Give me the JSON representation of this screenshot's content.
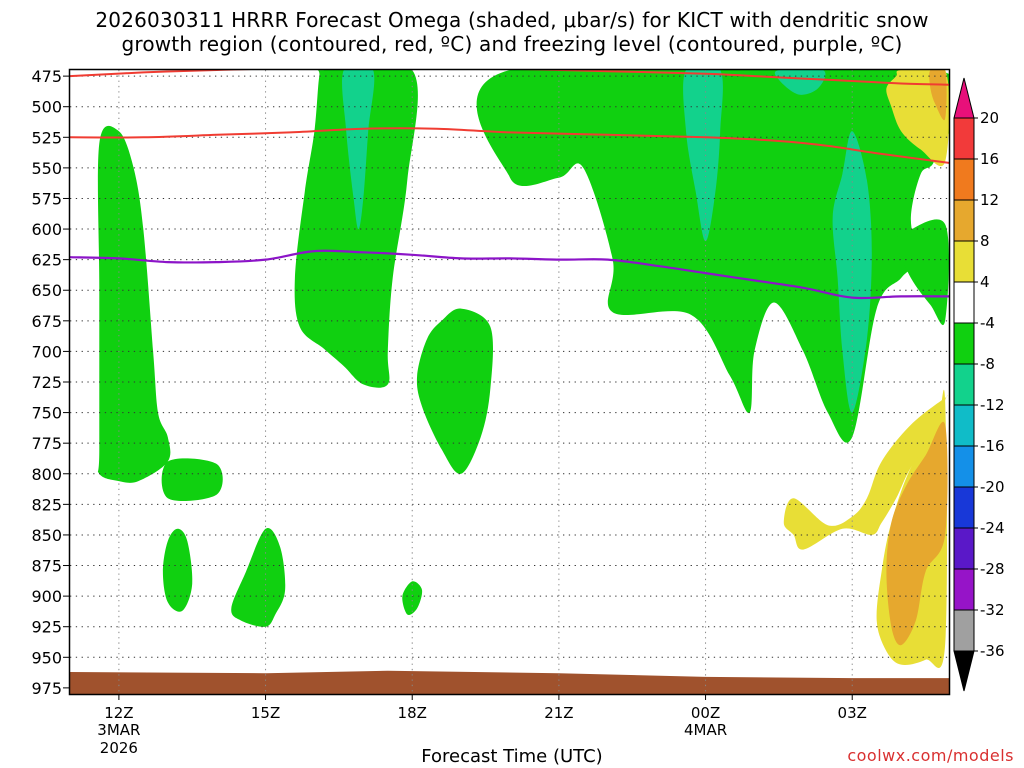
{
  "chart_data": {
    "type": "contour-time-height",
    "title_line1": "2026030311 HRRR Forecast Omega (shaded, μbar/s) for KICT with dendritic snow",
    "title_line2": "growth region (contoured, red, ºC) and freezing level (contoured, purple, ºC)",
    "xlabel": "Forecast Time (UTC)",
    "credit": "coolwx.com/models",
    "y_ticks": [
      475,
      500,
      525,
      550,
      575,
      600,
      625,
      650,
      675,
      700,
      725,
      750,
      775,
      800,
      825,
      850,
      875,
      900,
      925,
      950,
      975
    ],
    "x_ticks": [
      {
        "label": "12Z",
        "sub1": "3MAR",
        "sub2": "2026",
        "hour": 12
      },
      {
        "label": "15Z",
        "sub1": "",
        "sub2": "",
        "hour": 15
      },
      {
        "label": "18Z",
        "sub1": "",
        "sub2": "",
        "hour": 18
      },
      {
        "label": "21Z",
        "sub1": "",
        "sub2": "",
        "hour": 21
      },
      {
        "label": "00Z",
        "sub1": "4MAR",
        "sub2": "",
        "hour": 24
      },
      {
        "label": "03Z",
        "sub1": "",
        "sub2": "",
        "hour": 27
      }
    ],
    "x_range_hours": [
      11,
      29
    ],
    "y_range_mb": [
      470,
      980
    ],
    "colorbar": {
      "labels": [
        "20",
        "16",
        "12",
        "8",
        "4",
        "-4",
        "-8",
        "-12",
        "-16",
        "-20",
        "-24",
        "-28",
        "-32",
        "-36"
      ],
      "colors": [
        "#e8107a",
        "#f23a3a",
        "#f07a1e",
        "#e6a82e",
        "#e8de36",
        "#ffffff",
        "#10d010",
        "#12d28c",
        "#10bcc8",
        "#1490e8",
        "#1838d8",
        "#5a18c8",
        "#9614c8",
        "#a0a0a0",
        "#000000"
      ]
    },
    "dgz_top": [
      [
        11,
        475
      ],
      [
        12.5,
        472
      ],
      [
        14,
        470
      ],
      [
        16,
        468
      ],
      [
        18,
        468
      ],
      [
        20,
        469
      ],
      [
        22,
        471
      ],
      [
        24,
        473
      ],
      [
        25,
        475
      ],
      [
        26,
        477
      ],
      [
        27,
        479
      ],
      [
        28,
        481
      ],
      [
        29,
        482
      ]
    ],
    "dgz_bottom": [
      [
        11,
        525
      ],
      [
        12.5,
        525
      ],
      [
        14,
        523
      ],
      [
        15.5,
        521
      ],
      [
        17,
        518
      ],
      [
        18.5,
        518
      ],
      [
        20,
        521
      ],
      [
        22,
        523
      ],
      [
        24,
        525
      ],
      [
        25.5,
        528
      ],
      [
        26.5,
        532
      ],
      [
        27.5,
        538
      ],
      [
        29,
        546
      ]
    ],
    "freezing_level": [
      [
        11,
        623
      ],
      [
        12,
        624
      ],
      [
        13,
        627
      ],
      [
        14,
        627
      ],
      [
        15,
        625
      ],
      [
        16,
        618
      ],
      [
        17,
        619
      ],
      [
        18,
        621
      ],
      [
        19,
        624
      ],
      [
        20,
        624
      ],
      [
        21,
        625
      ],
      [
        22,
        625
      ],
      [
        23,
        630
      ],
      [
        24,
        636
      ],
      [
        25,
        642
      ],
      [
        26,
        648
      ],
      [
        27,
        656
      ],
      [
        28,
        655
      ],
      [
        29,
        655
      ]
    ],
    "omega_regions": [
      {
        "level": -4,
        "color": "#10d010",
        "points": [
          [
            11.6,
            530
          ],
          [
            12.0,
            520
          ],
          [
            12.3,
            550
          ],
          [
            12.5,
            600
          ],
          [
            12.7,
            700
          ],
          [
            12.8,
            750
          ],
          [
            13.0,
            770
          ],
          [
            13.0,
            790
          ],
          [
            12.4,
            806
          ],
          [
            12.0,
            806
          ],
          [
            11.6,
            800
          ],
          [
            11.6,
            780
          ],
          [
            11.6,
            650
          ]
        ]
      },
      {
        "level": -4,
        "color": "#10d010",
        "points": [
          [
            13.0,
            790
          ],
          [
            14.0,
            792
          ],
          [
            14.0,
            817
          ],
          [
            13.0,
            820
          ]
        ]
      },
      {
        "level": -4,
        "color": "#10d010",
        "points": [
          [
            13.2,
            845
          ],
          [
            13.4,
            855
          ],
          [
            13.5,
            890
          ],
          [
            13.3,
            912
          ],
          [
            13.0,
            905
          ],
          [
            12.9,
            880
          ],
          [
            13.0,
            855
          ]
        ]
      },
      {
        "level": -4,
        "color": "#10d010",
        "points": [
          [
            15.0,
            845
          ],
          [
            15.3,
            860
          ],
          [
            15.4,
            895
          ],
          [
            15.2,
            915
          ],
          [
            15.0,
            925
          ],
          [
            14.5,
            920
          ],
          [
            14.3,
            910
          ],
          [
            14.6,
            880
          ]
        ]
      },
      {
        "level": -4,
        "color": "#10d010",
        "points": [
          [
            16.2,
            470
          ],
          [
            18.0,
            470
          ],
          [
            17.9,
            560
          ],
          [
            17.6,
            640
          ],
          [
            17.5,
            700
          ],
          [
            17.5,
            727
          ],
          [
            17.0,
            727
          ],
          [
            16.6,
            712
          ],
          [
            16.2,
            698
          ],
          [
            15.7,
            680
          ],
          [
            15.6,
            640
          ],
          [
            15.8,
            570
          ],
          [
            16.0,
            520
          ],
          [
            16.1,
            475
          ]
        ]
      },
      {
        "level": -4,
        "color": "#10d010",
        "points": [
          [
            19.0,
            665
          ],
          [
            19.6,
            680
          ],
          [
            19.6,
            730
          ],
          [
            19.4,
            770
          ],
          [
            19.0,
            800
          ],
          [
            18.6,
            780
          ],
          [
            18.2,
            745
          ],
          [
            18.1,
            720
          ],
          [
            18.3,
            690
          ],
          [
            18.6,
            675
          ]
        ]
      },
      {
        "level": -4,
        "color": "#10d010",
        "points": [
          [
            18.0,
            888
          ],
          [
            18.2,
            895
          ],
          [
            18.1,
            910
          ],
          [
            17.9,
            915
          ],
          [
            17.8,
            900
          ]
        ]
      },
      {
        "level": -4,
        "color": "#10d010",
        "points": [
          [
            20.0,
            470
          ],
          [
            28.7,
            470
          ],
          [
            28.7,
            540
          ],
          [
            28.4,
            555
          ],
          [
            28.2,
            590
          ],
          [
            28.3,
            625
          ],
          [
            28.0,
            640
          ],
          [
            27.5,
            665
          ],
          [
            27.0,
            770
          ],
          [
            26.5,
            750
          ],
          [
            26.0,
            700
          ],
          [
            25.4,
            660
          ],
          [
            25.0,
            700
          ],
          [
            24.9,
            750
          ],
          [
            24.5,
            720
          ],
          [
            23.7,
            670
          ],
          [
            22.1,
            668
          ],
          [
            22.1,
            625
          ],
          [
            21.5,
            550
          ],
          [
            21.0,
            558
          ],
          [
            20.0,
            558
          ]
        ]
      },
      {
        "level": -4,
        "color": "#10d010",
        "points": [
          [
            28.0,
            605
          ],
          [
            28.9,
            596
          ],
          [
            28.9,
            675
          ],
          [
            28.6,
            662
          ],
          [
            28.2,
            640
          ],
          [
            27.9,
            612
          ]
        ]
      },
      {
        "level": -8,
        "color": "#12d28c",
        "points": [
          [
            16.6,
            470
          ],
          [
            17.2,
            470
          ],
          [
            17.1,
            520
          ],
          [
            17.0,
            575
          ],
          [
            16.9,
            600
          ],
          [
            16.8,
            575
          ],
          [
            16.65,
            520
          ]
        ]
      },
      {
        "level": -8,
        "color": "#12d28c",
        "points": [
          [
            23.6,
            470
          ],
          [
            24.3,
            470
          ],
          [
            24.3,
            520
          ],
          [
            24.2,
            570
          ],
          [
            24.0,
            610
          ],
          [
            23.8,
            570
          ],
          [
            23.6,
            520
          ]
        ]
      },
      {
        "level": -8,
        "color": "#12d28c",
        "points": [
          [
            25.5,
            470
          ],
          [
            26.4,
            470
          ],
          [
            26.3,
            485
          ],
          [
            25.9,
            490
          ],
          [
            25.5,
            478
          ]
        ]
      },
      {
        "level": -8,
        "color": "#12d28c",
        "points": [
          [
            26.8,
            555
          ],
          [
            27.0,
            520
          ],
          [
            27.3,
            560
          ],
          [
            27.4,
            620
          ],
          [
            27.3,
            690
          ],
          [
            27.0,
            750
          ],
          [
            26.8,
            700
          ],
          [
            26.7,
            640
          ],
          [
            26.6,
            590
          ]
        ]
      },
      {
        "level": 4,
        "color": "#e8de36",
        "points": [
          [
            28.0,
            470
          ],
          [
            28.9,
            470
          ],
          [
            28.9,
            545
          ],
          [
            28.4,
            535
          ],
          [
            28.0,
            520
          ],
          [
            27.8,
            500
          ],
          [
            27.7,
            485
          ],
          [
            27.9,
            475
          ]
        ]
      },
      {
        "level": 8,
        "color": "#e6a82e",
        "points": [
          [
            28.6,
            470
          ],
          [
            28.9,
            470
          ],
          [
            28.9,
            510
          ],
          [
            28.7,
            498
          ],
          [
            28.6,
            485
          ]
        ]
      },
      {
        "level": 4,
        "color": "#e8de36",
        "points": [
          [
            28.9,
            740
          ],
          [
            28.7,
            770
          ],
          [
            28.2,
            795
          ],
          [
            27.9,
            820
          ],
          [
            27.6,
            840
          ],
          [
            27.4,
            850
          ],
          [
            26.8,
            845
          ],
          [
            26.0,
            862
          ],
          [
            25.8,
            850
          ],
          [
            25.6,
            840
          ],
          [
            25.8,
            820
          ],
          [
            26.5,
            842
          ],
          [
            27.0,
            835
          ],
          [
            27.3,
            820
          ],
          [
            27.6,
            790
          ],
          [
            28.2,
            760
          ],
          [
            28.9,
            738
          ]
        ]
      },
      {
        "level": 4,
        "color": "#e8de36",
        "points": [
          [
            28.9,
            740
          ],
          [
            28.9,
            940
          ],
          [
            28.5,
            952
          ],
          [
            28.0,
            956
          ],
          [
            27.7,
            945
          ],
          [
            27.5,
            920
          ],
          [
            27.6,
            880
          ],
          [
            27.8,
            840
          ],
          [
            28.2,
            795
          ],
          [
            28.7,
            770
          ]
        ]
      },
      {
        "level": 8,
        "color": "#e6a82e",
        "points": [
          [
            28.9,
            760
          ],
          [
            28.9,
            850
          ],
          [
            28.5,
            880
          ],
          [
            28.3,
            920
          ],
          [
            28.0,
            940
          ],
          [
            27.8,
            925
          ],
          [
            27.7,
            880
          ],
          [
            27.8,
            840
          ],
          [
            28.1,
            810
          ],
          [
            28.5,
            785
          ]
        ]
      }
    ],
    "terrain_color": "#a0522d",
    "terrain_profile": [
      [
        11,
        962
      ],
      [
        15,
        963
      ],
      [
        17.5,
        961
      ],
      [
        21,
        963
      ],
      [
        24,
        966
      ],
      [
        27,
        967
      ],
      [
        29,
        967
      ]
    ]
  },
  "title": {
    "line1": "2026030311 HRRR Forecast Omega (shaded, μbar/s) for KICT with dendritic snow",
    "line2": "growth region (contoured, red, ºC) and freezing level (contoured, purple, ºC)"
  },
  "footer": {
    "xlabel": "Forecast Time (UTC)",
    "credit": "coolwx.com/models"
  }
}
